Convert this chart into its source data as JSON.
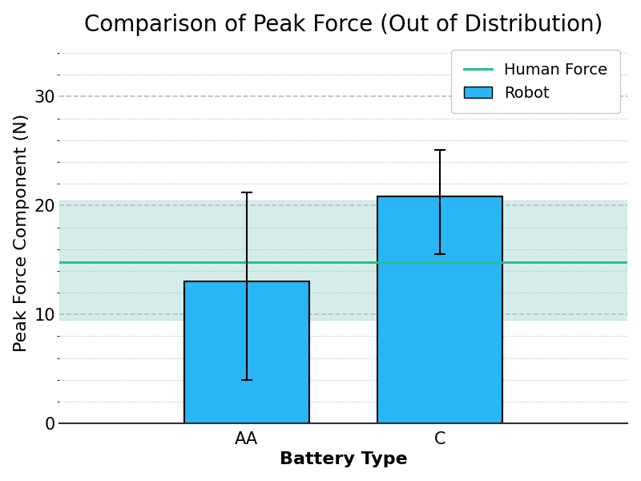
{
  "title": "Comparison of Peak Force (Out of Distribution)",
  "xlabel": "Battery Type",
  "ylabel": "Peak Force Component (N)",
  "categories": [
    "AA",
    "C"
  ],
  "bar_values": [
    13.0,
    20.8
  ],
  "bar_errors_upper": [
    8.2,
    4.3
  ],
  "bar_errors_lower": [
    9.0,
    5.3
  ],
  "bar_color": "#29b6f6",
  "bar_edgecolor": "#000000",
  "bar_width": 0.22,
  "human_force_mean": 14.8,
  "human_force_band_lower": 9.5,
  "human_force_band_upper": 20.5,
  "human_force_color": "#2dbf8a",
  "human_force_band_color": "#b2dfdb",
  "ylim": [
    0,
    35
  ],
  "yticks": [
    0,
    10,
    20,
    30
  ],
  "title_fontsize": 20,
  "label_fontsize": 16,
  "tick_fontsize": 15,
  "legend_fontsize": 14,
  "background_color": "#ffffff",
  "grid_color": "#bbbbbb",
  "grid_style": "--"
}
